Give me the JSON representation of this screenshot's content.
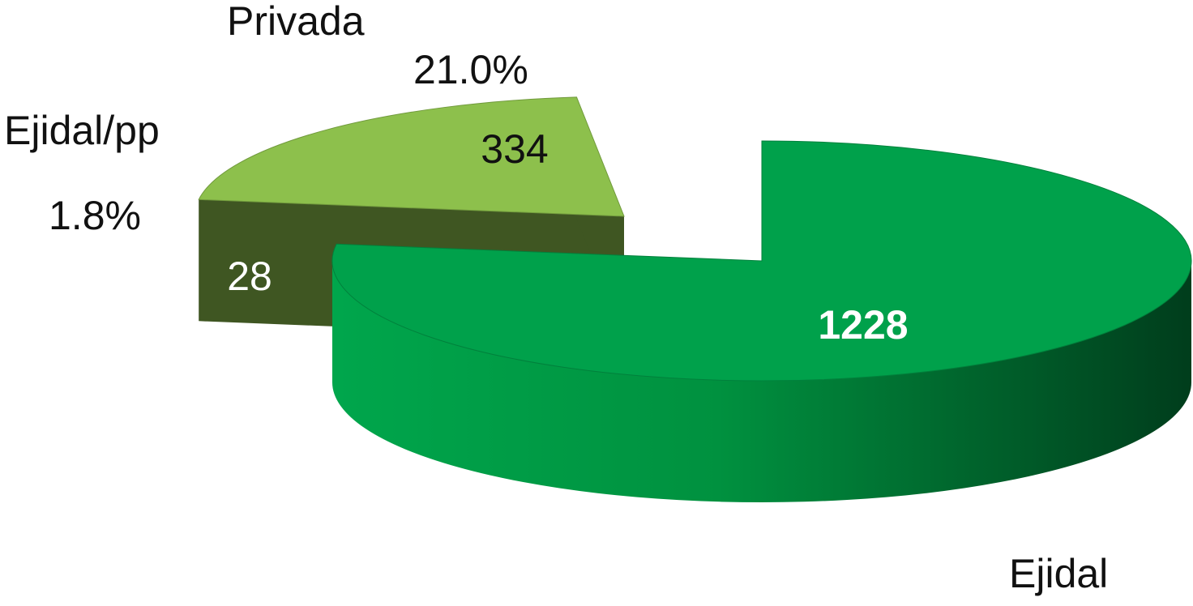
{
  "chart_data": {
    "type": "pie3d",
    "categories": [
      "Ejidal",
      "Privada",
      "Ejidal/pp"
    ],
    "values": [
      1228,
      334,
      28
    ],
    "percent_labels": [
      null,
      "21.0%",
      "1.8%"
    ],
    "colors": [
      "#00a14b",
      "#8dc04c",
      "#5b5e4f"
    ]
  }
}
